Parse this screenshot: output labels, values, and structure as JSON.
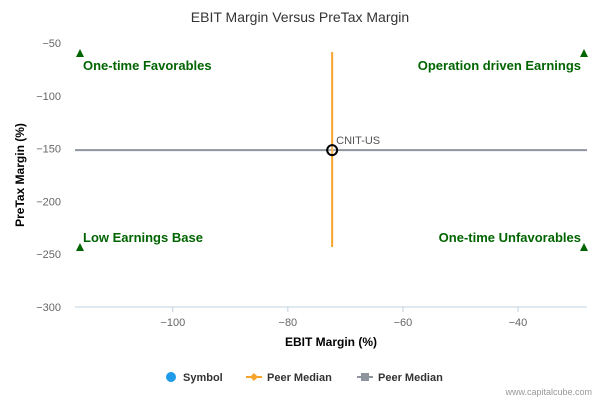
{
  "chart_data": {
    "type": "scatter",
    "title": "EBIT Margin Versus PreTax Margin",
    "xlabel": "EBIT Margin (%)",
    "ylabel": "PreTax Margin (%)",
    "xlim": [
      -117,
      -28
    ],
    "ylim": [
      -300,
      -50
    ],
    "x_ticks": [
      -100,
      -80,
      -60,
      -40
    ],
    "y_ticks": [
      -50,
      -100,
      -150,
      -200,
      -250,
      -300
    ],
    "grid": false,
    "legend_position": "bottom",
    "quadrant_labels": {
      "top_left": "One-time Favorables",
      "top_right": "Operation driven Earnings",
      "bottom_left": "Low Earnings Base",
      "bottom_right": "One-time Unfavorables"
    },
    "points": [
      {
        "label": "CNIT-US",
        "x": -72.3,
        "y": -151.5
      }
    ],
    "peer_median_x": -72.3,
    "peer_median_y": -151.5,
    "legend": [
      {
        "name": "Symbol",
        "marker": "circle",
        "color": "#1E9BE9"
      },
      {
        "name": "Peer Median",
        "marker": "line-diamond",
        "color": "#F7A42B"
      },
      {
        "name": "Peer Median",
        "marker": "line-square",
        "color": "#8E959E"
      }
    ],
    "colors": {
      "quadrant_text": "#006400",
      "quadrant_marker": "#006400",
      "vertical_median": "#F7A42B",
      "horizontal_median": "#8E959E",
      "point_stroke": "#000000"
    }
  },
  "watermark": "www.capitalcube.com"
}
